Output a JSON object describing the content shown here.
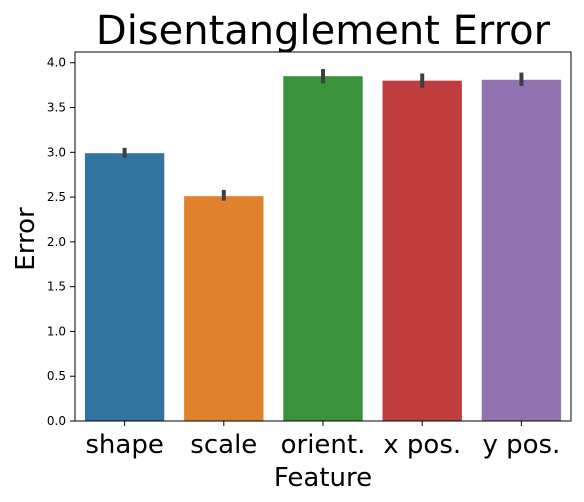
{
  "chart_data": {
    "type": "bar",
    "title": "Disentanglement Error",
    "xlabel": "Feature",
    "ylabel": "Error",
    "categories": [
      "shape",
      "scale",
      "orient.",
      "x pos.",
      "y pos."
    ],
    "values": [
      2.99,
      2.51,
      3.85,
      3.8,
      3.81
    ],
    "error_low": [
      2.94,
      2.46,
      3.77,
      3.72,
      3.74
    ],
    "error_high": [
      3.05,
      2.58,
      3.93,
      3.88,
      3.89
    ],
    "ylim": [
      0,
      4.12
    ],
    "yticks": [
      "0.0",
      "0.5",
      "1.0",
      "1.5",
      "2.0",
      "2.5",
      "3.0",
      "3.5",
      "4.0"
    ],
    "colors": [
      "#3274a1",
      "#e1812c",
      "#3a923a",
      "#c03d3e",
      "#9372b2"
    ],
    "error_bar_color": "#3f3f3f",
    "grid": false,
    "legend": "none"
  }
}
